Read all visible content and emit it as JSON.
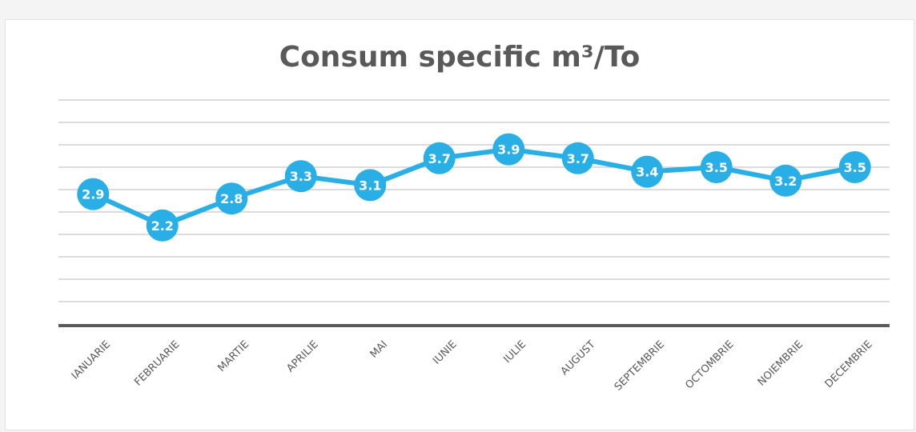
{
  "chart_data": {
    "type": "line",
    "title": "Consum specific m³/To",
    "categories": [
      "IANUARIE",
      "FEBRUARIE",
      "MARTIE",
      "APRILIE",
      "MAI",
      "IUNIE",
      "IULIE",
      "AUGUST",
      "SEPTEMBRIE",
      "OCTOMBRIE",
      "NOIEMBRIE",
      "DECEMBRIE"
    ],
    "series": [
      {
        "values": [
          2.9,
          2.2,
          2.8,
          3.3,
          3.1,
          3.7,
          3.9,
          3.7,
          3.4,
          3.5,
          3.2,
          3.5
        ]
      }
    ],
    "xlabel": "",
    "ylabel": "",
    "ylim": [
      0,
      5
    ],
    "grid": true,
    "data_labels": true,
    "colors": {
      "series": "#2aaee6",
      "axis": "#595959",
      "grid": "#c8c8c8"
    }
  }
}
